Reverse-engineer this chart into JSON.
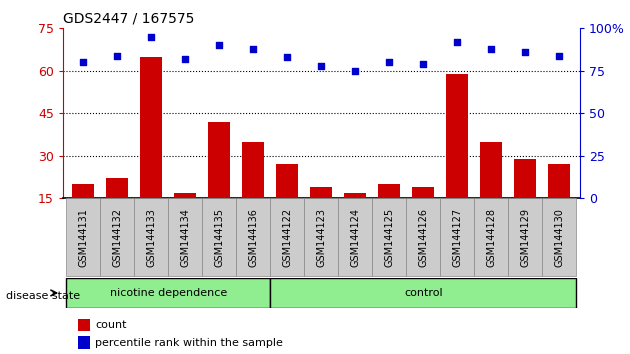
{
  "title": "GDS2447 / 167575",
  "samples": [
    "GSM144131",
    "GSM144132",
    "GSM144133",
    "GSM144134",
    "GSM144135",
    "GSM144136",
    "GSM144122",
    "GSM144123",
    "GSM144124",
    "GSM144125",
    "GSM144126",
    "GSM144127",
    "GSM144128",
    "GSM144129",
    "GSM144130"
  ],
  "counts": [
    20,
    22,
    65,
    17,
    42,
    35,
    27,
    19,
    17,
    20,
    19,
    59,
    35,
    29,
    27
  ],
  "percentile": [
    80,
    84,
    95,
    82,
    90,
    88,
    83,
    78,
    75,
    80,
    79,
    92,
    88,
    86,
    84
  ],
  "ylim_left": [
    15,
    75
  ],
  "ylim_right": [
    0,
    100
  ],
  "yticks_left": [
    15,
    30,
    45,
    60,
    75
  ],
  "yticks_right": [
    0,
    25,
    50,
    75,
    100
  ],
  "bar_color": "#cc0000",
  "dot_color": "#0000cc",
  "group_bg_color": "#90ee90",
  "label_bg_color": "#cccccc",
  "group1_label": "nicotine dependence",
  "group2_label": "control",
  "group1_count": 6,
  "group2_count": 9,
  "disease_state_label": "disease state",
  "legend_count_label": "count",
  "legend_pct_label": "percentile rank within the sample"
}
